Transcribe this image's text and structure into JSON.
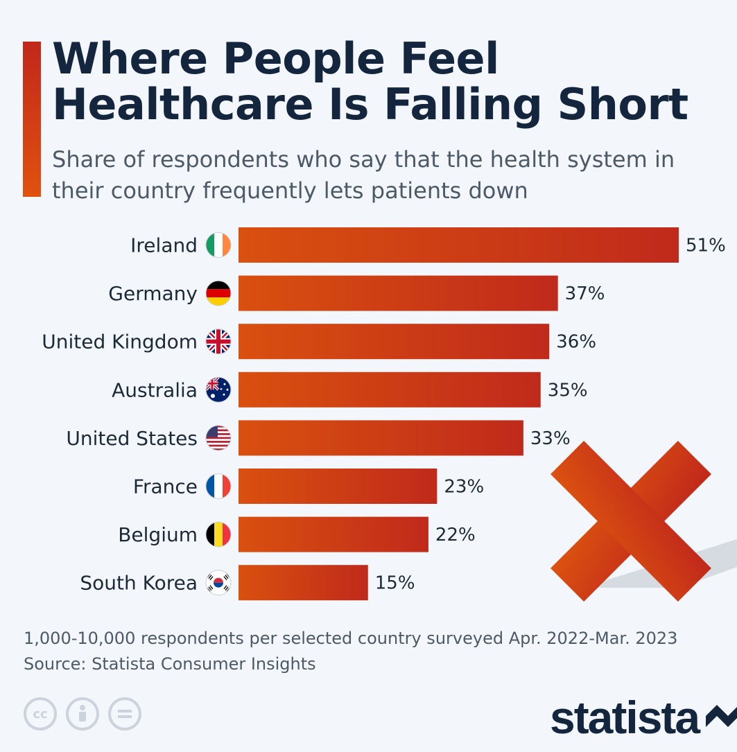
{
  "header": {
    "title": "Where People Feel Healthcare Is Falling Short",
    "subtitle": "Share of respondents who say that the health system in their country frequently lets patients down"
  },
  "footer": {
    "note": "1,000-10,000 respondents per selected country surveyed Apr. 2022-Mar. 2023",
    "source": "Source: Statista Consumer Insights",
    "logo": "statista"
  },
  "colors": {
    "bar_start": "#d9500f",
    "bar_end": "#c02a1b",
    "accent": "#c0281b",
    "title": "#14263d"
  },
  "chart_data": {
    "type": "bar",
    "orientation": "horizontal",
    "title": "Where People Feel Healthcare Is Falling Short",
    "subtitle": "Share of respondents who say that the health system in their country frequently lets patients down",
    "unit": "%",
    "categories": [
      "Ireland",
      "Germany",
      "United Kingdom",
      "Australia",
      "United States",
      "France",
      "Belgium",
      "South Korea"
    ],
    "values": [
      51,
      37,
      36,
      35,
      33,
      23,
      22,
      15
    ],
    "value_labels": [
      "51%",
      "37%",
      "36%",
      "35%",
      "33%",
      "23%",
      "22%",
      "15%"
    ],
    "flags": [
      "ireland-flag-icon",
      "germany-flag-icon",
      "uk-flag-icon",
      "australia-flag-icon",
      "usa-flag-icon",
      "france-flag-icon",
      "belgium-flag-icon",
      "south-korea-flag-icon"
    ],
    "xlim": [
      0,
      51
    ],
    "grid": false,
    "legend": "none"
  }
}
